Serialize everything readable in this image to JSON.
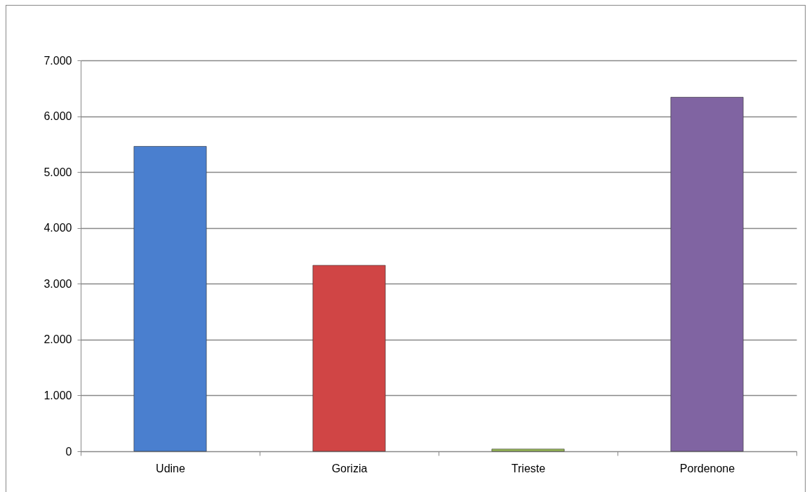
{
  "chart_data": {
    "type": "bar",
    "categories": [
      "Udine",
      "Gorizia",
      "Trieste",
      "Pordenone"
    ],
    "values": [
      5460,
      3330,
      40,
      6340
    ],
    "colors": [
      "#4a7fcf",
      "#d04545",
      "#9bbb59",
      "#8064a2"
    ],
    "ylim": [
      0,
      7000
    ],
    "yticks": [
      0,
      {
        "value": 1000,
        "label": "1.000"
      },
      {
        "value": 2000,
        "label": "2.000"
      },
      {
        "value": 3000,
        "label": "3.000"
      },
      {
        "value": 4000,
        "label": "4.000"
      },
      {
        "value": 5000,
        "label": "5.000"
      },
      {
        "value": 6000,
        "label": "6.000"
      },
      {
        "value": 7000,
        "label": "7.000"
      }
    ],
    "grid": "y"
  }
}
